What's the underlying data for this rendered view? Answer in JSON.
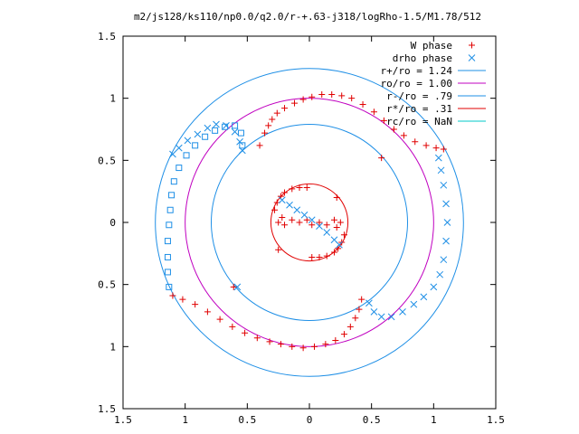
{
  "chart_data": {
    "type": "scatter",
    "title": "m2/js128/ks110/np0.0/q2.0/r-+.63-j318/logRho-1.5/M1.78/512",
    "xlim": [
      -1.5,
      1.5
    ],
    "ylim": [
      -1.5,
      1.5
    ],
    "x_ticks": [
      -1.5,
      -1,
      -0.5,
      0,
      0.5,
      1,
      1.5
    ],
    "x_tick_labels": [
      "1.5",
      "1",
      "0.5",
      "0",
      "0.5",
      "1",
      "1.5"
    ],
    "y_ticks": [
      1.5,
      1,
      0.5,
      0,
      -0.5,
      -1,
      -1.5
    ],
    "y_tick_labels": [
      "1.5",
      "1",
      "0.5",
      "0",
      "0.5",
      "1",
      "1.5"
    ],
    "grid": false,
    "legend_position": "top-right",
    "series": [
      {
        "name": "W phase",
        "marker": "plus",
        "color": "#e00000",
        "points": [
          [
            -0.4,
            0.62
          ],
          [
            -0.36,
            0.72
          ],
          [
            -0.33,
            0.78
          ],
          [
            -0.3,
            0.83
          ],
          [
            -0.26,
            0.88
          ],
          [
            -0.2,
            0.92
          ],
          [
            -0.12,
            0.96
          ],
          [
            -0.05,
            0.99
          ],
          [
            0.02,
            1.01
          ],
          [
            0.1,
            1.03
          ],
          [
            0.18,
            1.03
          ],
          [
            0.26,
            1.02
          ],
          [
            0.34,
            1.0
          ],
          [
            0.43,
            0.95
          ],
          [
            0.52,
            0.89
          ],
          [
            0.6,
            0.82
          ],
          [
            0.68,
            0.75
          ],
          [
            0.76,
            0.7
          ],
          [
            0.85,
            0.65
          ],
          [
            0.94,
            0.62
          ],
          [
            1.02,
            0.6
          ],
          [
            1.08,
            0.59
          ],
          [
            0.42,
            -0.62
          ],
          [
            0.4,
            -0.7
          ],
          [
            0.37,
            -0.77
          ],
          [
            0.33,
            -0.84
          ],
          [
            0.28,
            -0.9
          ],
          [
            0.21,
            -0.95
          ],
          [
            0.13,
            -0.98
          ],
          [
            0.04,
            -1.0
          ],
          [
            -0.05,
            -1.01
          ],
          [
            -0.14,
            -1.0
          ],
          [
            -0.23,
            -0.98
          ],
          [
            -0.32,
            -0.96
          ],
          [
            -0.42,
            -0.93
          ],
          [
            -0.52,
            -0.89
          ],
          [
            -0.62,
            -0.84
          ],
          [
            -0.72,
            -0.78
          ],
          [
            -0.82,
            -0.72
          ],
          [
            -0.92,
            -0.66
          ],
          [
            -1.02,
            -0.62
          ],
          [
            -1.1,
            -0.59
          ],
          [
            -0.28,
            0.1
          ],
          [
            -0.26,
            0.16
          ],
          [
            -0.23,
            0.21
          ],
          [
            -0.2,
            0.24
          ],
          [
            -0.14,
            0.27
          ],
          [
            -0.08,
            0.28
          ],
          [
            -0.02,
            0.28
          ],
          [
            -0.22,
            0.04
          ],
          [
            -0.25,
            0.0
          ],
          [
            -0.2,
            -0.02
          ],
          [
            -0.14,
            0.02
          ],
          [
            -0.08,
            0.0
          ],
          [
            -0.02,
            0.02
          ],
          [
            0.28,
            -0.1
          ],
          [
            0.26,
            -0.16
          ],
          [
            0.23,
            -0.21
          ],
          [
            0.2,
            -0.24
          ],
          [
            0.14,
            -0.27
          ],
          [
            0.08,
            -0.28
          ],
          [
            0.02,
            -0.28
          ],
          [
            0.22,
            -0.04
          ],
          [
            0.25,
            0.0
          ],
          [
            0.2,
            0.02
          ],
          [
            0.14,
            -0.02
          ],
          [
            0.08,
            0.0
          ],
          [
            0.02,
            -0.02
          ],
          [
            -0.25,
            -0.22
          ],
          [
            0.22,
            0.2
          ],
          [
            0.58,
            0.52
          ],
          [
            -0.61,
            -0.52
          ]
        ]
      },
      {
        "name": "drho phase",
        "marker": "cross",
        "color": "#1e8fe6",
        "points": [
          [
            -1.1,
            0.55
          ],
          [
            -1.05,
            0.6
          ],
          [
            -0.98,
            0.66
          ],
          [
            -0.9,
            0.71
          ],
          [
            -0.82,
            0.76
          ],
          [
            -0.75,
            0.79
          ],
          [
            -0.67,
            0.78
          ],
          [
            -0.6,
            0.73
          ],
          [
            -0.56,
            0.65
          ],
          [
            -0.54,
            0.58
          ],
          [
            1.04,
            0.52
          ],
          [
            1.06,
            0.42
          ],
          [
            1.08,
            0.3
          ],
          [
            1.1,
            0.15
          ],
          [
            1.11,
            0.0
          ],
          [
            1.1,
            -0.15
          ],
          [
            1.08,
            -0.3
          ],
          [
            1.05,
            -0.42
          ],
          [
            1.0,
            -0.52
          ],
          [
            0.92,
            -0.6
          ],
          [
            0.84,
            -0.66
          ],
          [
            0.75,
            -0.72
          ],
          [
            0.66,
            -0.76
          ],
          [
            0.58,
            -0.76
          ],
          [
            0.52,
            -0.72
          ],
          [
            0.48,
            -0.65
          ],
          [
            -0.22,
            0.18
          ],
          [
            -0.16,
            0.14
          ],
          [
            -0.1,
            0.1
          ],
          [
            -0.04,
            0.06
          ],
          [
            0.02,
            0.02
          ],
          [
            0.08,
            -0.03
          ],
          [
            0.14,
            -0.08
          ],
          [
            0.2,
            -0.14
          ],
          [
            0.24,
            -0.18
          ],
          [
            -0.58,
            -0.52
          ]
        ]
      },
      {
        "name": "drho phase",
        "marker": "square",
        "color": "#1e8fe6",
        "points": [
          [
            -1.13,
            -0.52
          ],
          [
            -1.14,
            -0.4
          ],
          [
            -1.14,
            -0.28
          ],
          [
            -1.14,
            -0.15
          ],
          [
            -1.13,
            -0.02
          ],
          [
            -1.12,
            0.1
          ],
          [
            -1.11,
            0.22
          ],
          [
            -1.09,
            0.33
          ],
          [
            -1.05,
            0.44
          ],
          [
            -0.99,
            0.54
          ],
          [
            -0.92,
            0.62
          ],
          [
            -0.84,
            0.69
          ],
          [
            -0.76,
            0.74
          ],
          [
            -0.68,
            0.77
          ],
          [
            -0.6,
            0.78
          ],
          [
            -0.55,
            0.72
          ],
          [
            -0.54,
            0.62
          ]
        ]
      }
    ],
    "circles": [
      {
        "name": "r+/ro = 1.24",
        "r": 1.24,
        "color": "#1e8fe6"
      },
      {
        "name": "ro/ro = 1.00",
        "r": 1.0,
        "color": "#c000c0"
      },
      {
        "name": "r-/ro = .79",
        "r": 0.79,
        "color": "#1e8fe6"
      },
      {
        "name": "r*/ro = .31",
        "r": 0.31,
        "color": "#e00000"
      },
      {
        "name": "rc/ro = NaN",
        "r": null,
        "color": "#00c8c8"
      }
    ]
  }
}
